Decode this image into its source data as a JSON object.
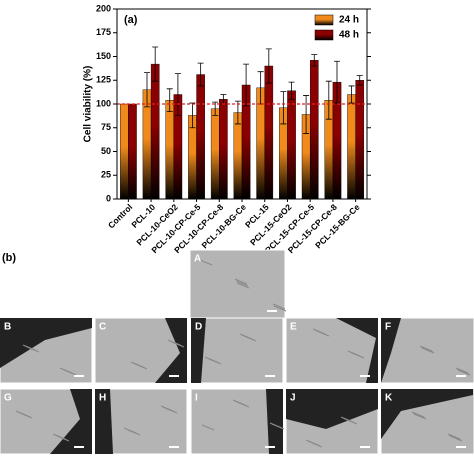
{
  "chart_data": {
    "type": "bar",
    "panel_label": "(a)",
    "y_label": "Cell viability (%)",
    "categories": [
      "Control",
      "PCL-10",
      "PCL-10-CeO2",
      "PCL-10-CP-Ce-5",
      "PCL-10-CP-Ce-8",
      "PCL-10-BG-Ce",
      "PCL-15",
      "PCL-15-CeO2",
      "PCL-15-CP-Ce-5",
      "PCL-15-CP-Ce-8",
      "PCL-15-BG-Ce"
    ],
    "series": [
      {
        "name": "24 h",
        "color": "#f08a1c",
        "values": [
          100,
          115,
          104,
          88,
          95,
          91,
          117,
          96,
          89,
          104,
          110
        ],
        "errors": [
          0,
          18,
          12,
          13,
          7,
          12,
          17,
          17,
          20,
          20,
          9
        ]
      },
      {
        "name": "48 h",
        "color": "#8b0000",
        "values": [
          100,
          142,
          110,
          131,
          105,
          120,
          140,
          114,
          146,
          123,
          125
        ],
        "errors": [
          0,
          18,
          22,
          12,
          5,
          22,
          18,
          9,
          6,
          22,
          5
        ]
      }
    ],
    "ylim": [
      0,
      200
    ],
    "yticks": [
      0,
      25,
      50,
      75,
      100,
      125,
      150,
      175,
      200
    ],
    "reference_line": {
      "value": 100,
      "color": "#e02020"
    },
    "legend": "upper right"
  },
  "images": {
    "panel_label": "(b)",
    "panels": [
      "A",
      "B",
      "C",
      "D",
      "E",
      "F",
      "G",
      "H",
      "I",
      "J",
      "K"
    ]
  }
}
